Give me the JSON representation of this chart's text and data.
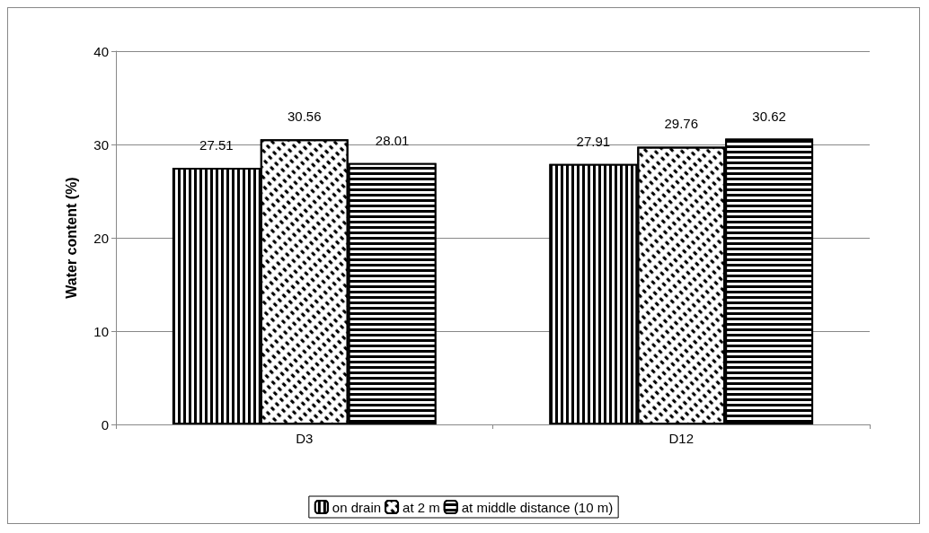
{
  "chart_data": {
    "type": "bar",
    "ylabel": "Water content (%)",
    "categories": [
      "D3",
      "D12"
    ],
    "series": [
      {
        "name": "on drain",
        "color": "#000000",
        "values": [
          27.51,
          27.91
        ]
      },
      {
        "name": "at 2 m",
        "color": "#ffffff",
        "values": [
          30.56,
          29.76
        ]
      },
      {
        "name": "at middle distance (10 m)",
        "color": "#000000",
        "values": [
          28.01,
          30.62
        ]
      }
    ],
    "ylim": [
      0,
      40
    ],
    "yticks": [
      0,
      10,
      20,
      30,
      40
    ],
    "grid": "y",
    "legend": "bottom",
    "data_labels": true
  }
}
